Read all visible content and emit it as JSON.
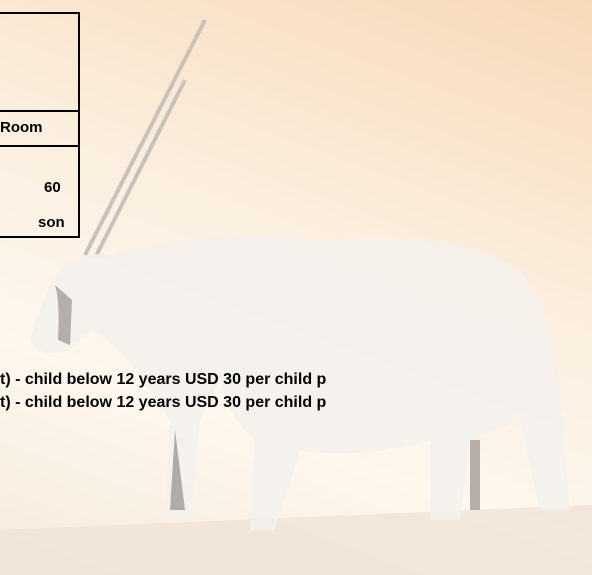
{
  "table": {
    "header": "Room",
    "cells": [
      "60",
      "son"
    ]
  },
  "notes": [
    "t) - child below 12 years USD 30 per child p",
    "t) - child below 12 years USD 30 per child p"
  ]
}
